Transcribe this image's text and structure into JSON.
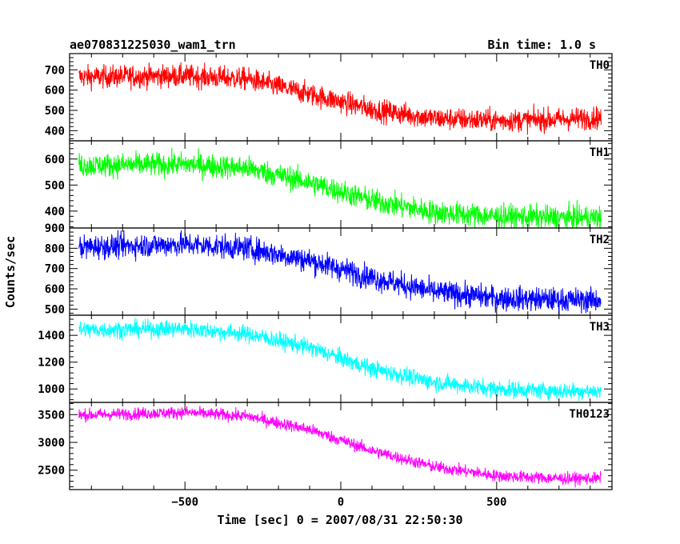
{
  "chart_data": {
    "type": "line",
    "title": "ae070831225030_wam1_trn",
    "bin_time": "Bin time: 1.0 s",
    "xlabel": "Time [sec] 0 = 2007/08/31 22:50:30",
    "ylabel": "Counts/sec",
    "xlim": [
      -870,
      870
    ],
    "x_ticks": [
      -500,
      0,
      500
    ],
    "x_tick_labels": [
      "−500",
      "0",
      "500"
    ],
    "x_range": [
      -840,
      835
    ],
    "panels": [
      {
        "name": "TH0",
        "color": "#ff0000",
        "ylim": [
          350,
          780
        ],
        "y_ticks": [
          400,
          500,
          600,
          700
        ],
        "y_tick_labels": [
          "400",
          "500",
          "600",
          "700"
        ],
        "trend": [
          [
            -840,
            665
          ],
          [
            -500,
            670
          ],
          [
            -300,
            655
          ],
          [
            -100,
            580
          ],
          [
            100,
            505
          ],
          [
            300,
            460
          ],
          [
            500,
            450
          ],
          [
            700,
            455
          ],
          [
            835,
            465
          ]
        ],
        "noise": 28
      },
      {
        "name": "TH1",
        "color": "#00ff00",
        "ylim": [
          335,
          670
        ],
        "y_ticks": [
          400,
          500,
          600
        ],
        "y_tick_labels": [
          "400",
          "500",
          "600"
        ],
        "trend": [
          [
            -840,
            575
          ],
          [
            -500,
            580
          ],
          [
            -300,
            565
          ],
          [
            -100,
            510
          ],
          [
            100,
            440
          ],
          [
            300,
            395
          ],
          [
            500,
            380
          ],
          [
            700,
            375
          ],
          [
            835,
            375
          ]
        ],
        "noise": 23
      },
      {
        "name": "TH2",
        "color": "#0000ff",
        "ylim": [
          470,
          900
        ],
        "y_ticks": [
          500,
          600,
          700,
          800,
          900
        ],
        "y_tick_labels": [
          "500",
          "600",
          "700",
          "800",
          "900"
        ],
        "trend": [
          [
            -840,
            805
          ],
          [
            -500,
            820
          ],
          [
            -300,
            800
          ],
          [
            -100,
            740
          ],
          [
            100,
            655
          ],
          [
            300,
            585
          ],
          [
            500,
            555
          ],
          [
            700,
            545
          ],
          [
            835,
            545
          ]
        ],
        "noise": 30
      },
      {
        "name": "TH3",
        "color": "#00ffff",
        "ylim": [
          900,
          1550
        ],
        "y_ticks": [
          1000,
          1200,
          1400
        ],
        "y_tick_labels": [
          "1000",
          "1200",
          "1400"
        ],
        "trend": [
          [
            -840,
            1440
          ],
          [
            -500,
            1450
          ],
          [
            -300,
            1410
          ],
          [
            -100,
            1310
          ],
          [
            100,
            1150
          ],
          [
            300,
            1050
          ],
          [
            500,
            1000
          ],
          [
            700,
            985
          ],
          [
            835,
            985
          ]
        ],
        "noise": 32
      },
      {
        "name": "TH0123",
        "color": "#ff00ff",
        "ylim": [
          2150,
          3720
        ],
        "y_ticks": [
          2500,
          3000,
          3500
        ],
        "y_tick_labels": [
          "2500",
          "3000",
          "3500"
        ],
        "trend": [
          [
            -840,
            3490
          ],
          [
            -500,
            3540
          ],
          [
            -300,
            3470
          ],
          [
            -100,
            3230
          ],
          [
            100,
            2850
          ],
          [
            300,
            2560
          ],
          [
            500,
            2400
          ],
          [
            700,
            2350
          ],
          [
            835,
            2350
          ]
        ],
        "noise": 55
      }
    ]
  }
}
